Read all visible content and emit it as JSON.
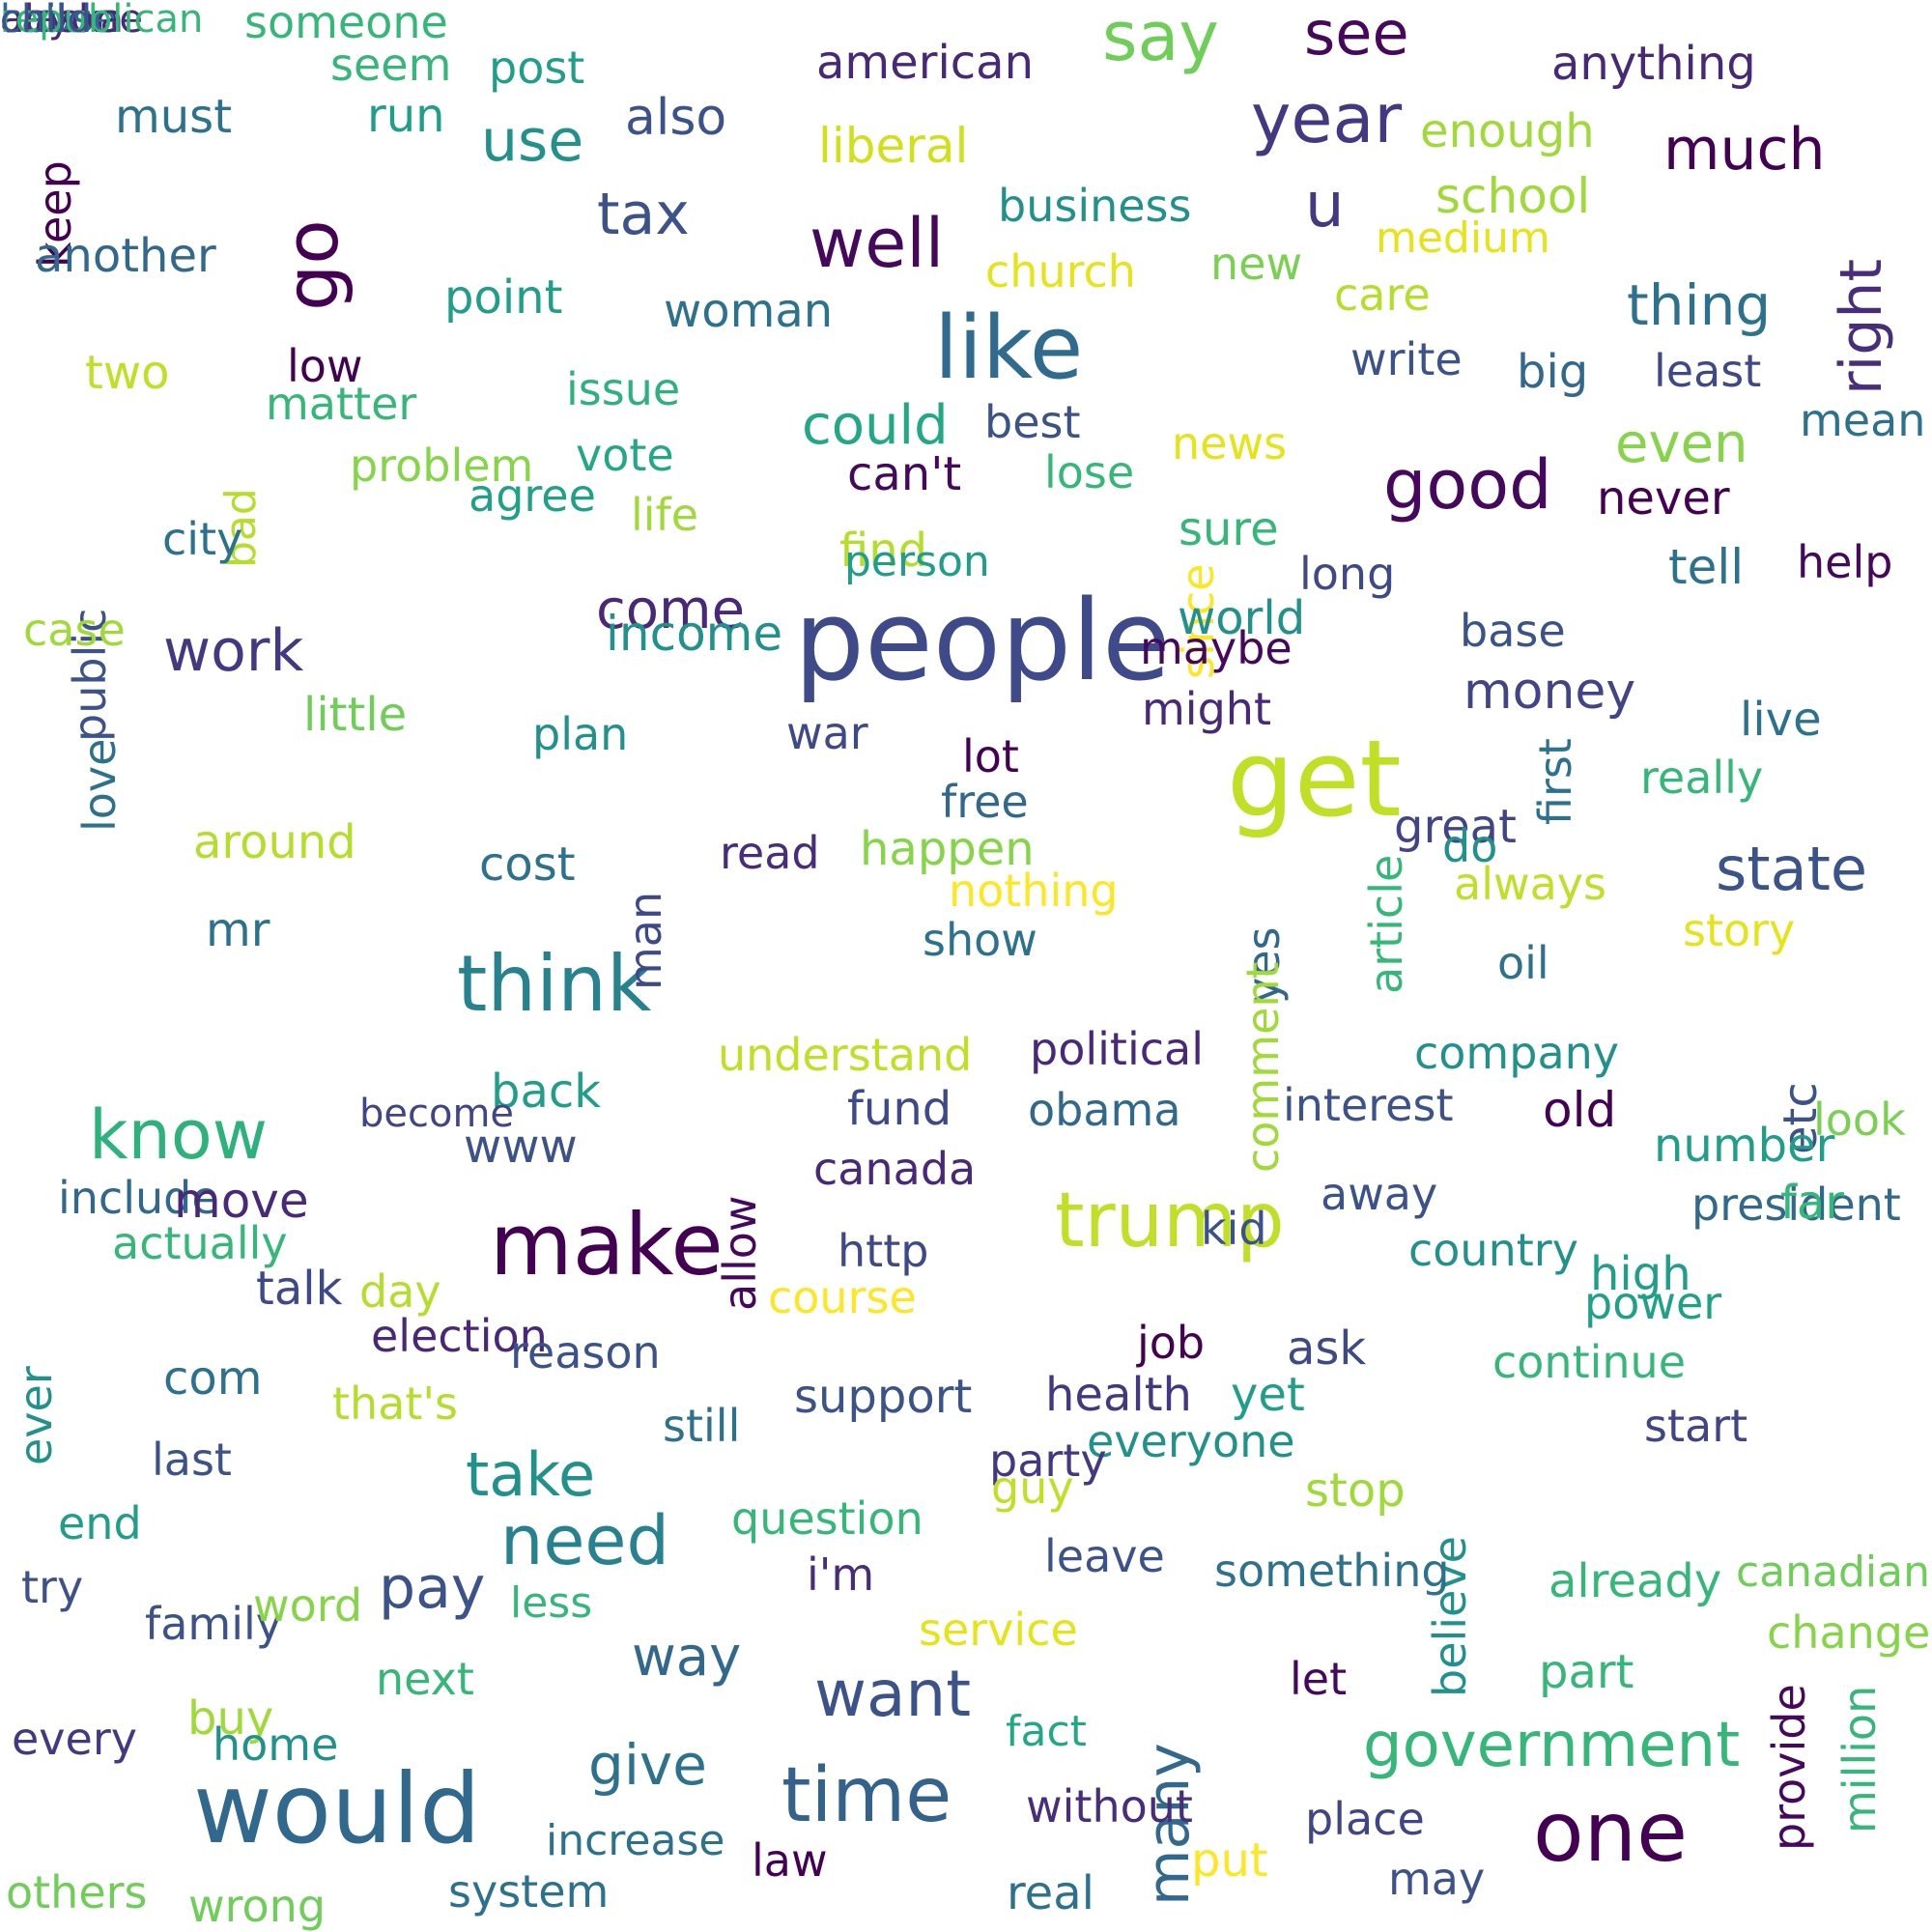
{
  "words": [
    {
      "text": "people",
      "color": "#3f4a8a"
    },
    {
      "text": "would",
      "color": "#31688e"
    },
    {
      "text": "get",
      "color": "#c0df25"
    },
    {
      "text": "like",
      "color": "#2f6b8e"
    },
    {
      "text": "make",
      "color": "#440154"
    },
    {
      "text": "one",
      "color": "#440154"
    },
    {
      "text": "think",
      "color": "#26828e"
    },
    {
      "text": "time",
      "color": "#33638d"
    },
    {
      "text": "trump",
      "color": "#c0df25"
    },
    {
      "text": "go",
      "color": "#440154"
    },
    {
      "text": "year",
      "color": "#453882"
    },
    {
      "text": "know",
      "color": "#2db27d"
    },
    {
      "text": "say",
      "color": "#6ece58"
    },
    {
      "text": "well",
      "color": "#46085c"
    },
    {
      "text": "good",
      "color": "#46085c"
    },
    {
      "text": "many",
      "color": "#31688e"
    },
    {
      "text": "need",
      "color": "#26828e"
    },
    {
      "text": "want",
      "color": "#3b528b"
    },
    {
      "text": "take",
      "color": "#21918c"
    },
    {
      "text": "see",
      "color": "#46085c"
    },
    {
      "text": "right",
      "color": "#472d7b"
    },
    {
      "text": "state",
      "color": "#3b528b"
    },
    {
      "text": "government",
      "color": "#35b779"
    },
    {
      "text": "pay",
      "color": "#3b528b"
    },
    {
      "text": "work",
      "color": "#453882"
    },
    {
      "text": "use",
      "color": "#21918c"
    },
    {
      "text": "tax",
      "color": "#3b528b"
    },
    {
      "text": "much",
      "color": "#440154"
    },
    {
      "text": "u",
      "color": "#443983"
    },
    {
      "text": "way",
      "color": "#31688e"
    },
    {
      "text": "come",
      "color": "#482878"
    },
    {
      "text": "could",
      "color": "#22a884"
    },
    {
      "text": "even",
      "color": "#86d549"
    },
    {
      "text": "give",
      "color": "#2c728e"
    },
    {
      "text": "money",
      "color": "#414487"
    },
    {
      "text": "thing",
      "color": "#2c728e"
    },
    {
      "text": "also",
      "color": "#3b528b"
    },
    {
      "text": "american",
      "color": "#482878"
    },
    {
      "text": "anything",
      "color": "#482878"
    },
    {
      "text": "liberal",
      "color": "#d0e11c"
    },
    {
      "text": "enough",
      "color": "#a0da39"
    },
    {
      "text": "business",
      "color": "#21918c"
    },
    {
      "text": "school",
      "color": "#a0da39"
    },
    {
      "text": "medium",
      "color": "#e5e419"
    },
    {
      "text": "church",
      "color": "#e5e419"
    },
    {
      "text": "new",
      "color": "#7ad151"
    },
    {
      "text": "care",
      "color": "#b5de2b"
    },
    {
      "text": "someone",
      "color": "#35b779"
    },
    {
      "text": "seem",
      "color": "#35b779"
    },
    {
      "text": "post",
      "color": "#1f9e89"
    },
    {
      "text": "must",
      "color": "#2c728e"
    },
    {
      "text": "run",
      "color": "#1f9e89"
    },
    {
      "text": "keep",
      "color": "#440154"
    },
    {
      "text": "another",
      "color": "#31688e"
    },
    {
      "text": "point",
      "color": "#1f9e89"
    },
    {
      "text": "woman",
      "color": "#2c728e"
    },
    {
      "text": "write",
      "color": "#3b528b"
    },
    {
      "text": "big",
      "color": "#31688e"
    },
    {
      "text": "least",
      "color": "#3e4989"
    },
    {
      "text": "mean",
      "color": "#2c728e"
    },
    {
      "text": "two",
      "color": "#c0df25"
    },
    {
      "text": "low",
      "color": "#440154"
    },
    {
      "text": "matter",
      "color": "#35b779"
    },
    {
      "text": "issue",
      "color": "#2db27d"
    },
    {
      "text": "bad",
      "color": "#b5de2b"
    },
    {
      "text": "best",
      "color": "#3b528b"
    },
    {
      "text": "public",
      "color": "#3b528b"
    },
    {
      "text": "problem",
      "color": "#86d549"
    },
    {
      "text": "vote",
      "color": "#22a884"
    },
    {
      "text": "agree",
      "color": "#1fa187"
    },
    {
      "text": "life",
      "color": "#a0da39"
    },
    {
      "text": "can't",
      "color": "#46085c"
    },
    {
      "text": "lose",
      "color": "#35b779"
    },
    {
      "text": "news",
      "color": "#e5e419"
    },
    {
      "text": "long",
      "color": "#3e4989"
    },
    {
      "text": "never",
      "color": "#440154"
    },
    {
      "text": "since",
      "color": "#fde725"
    },
    {
      "text": "sure",
      "color": "#35b779"
    },
    {
      "text": "city",
      "color": "#2c728e"
    },
    {
      "text": "find",
      "color": "#b5de2b"
    },
    {
      "text": "help",
      "color": "#46085c"
    },
    {
      "text": "tell",
      "color": "#2c728e"
    },
    {
      "text": "world",
      "color": "#21918c"
    },
    {
      "text": "person",
      "color": "#1f9e89"
    },
    {
      "text": "case",
      "color": "#a0da39"
    },
    {
      "text": "base",
      "color": "#3b528b"
    },
    {
      "text": "income",
      "color": "#21918c"
    },
    {
      "text": "maybe",
      "color": "#46085c"
    },
    {
      "text": "little",
      "color": "#6ece58"
    },
    {
      "text": "live",
      "color": "#2c728e"
    },
    {
      "text": "plan",
      "color": "#21918c"
    },
    {
      "text": "might",
      "color": "#482878"
    },
    {
      "text": "war",
      "color": "#3e4989"
    },
    {
      "text": "lot",
      "color": "#440154"
    },
    {
      "text": "love",
      "color": "#2c728e"
    },
    {
      "text": "really",
      "color": "#35b779"
    },
    {
      "text": "first",
      "color": "#2c728e"
    },
    {
      "text": "free",
      "color": "#31688e"
    },
    {
      "text": "around",
      "color": "#b5de2b"
    },
    {
      "text": "happen",
      "color": "#86d549"
    },
    {
      "text": "great",
      "color": "#414487"
    },
    {
      "text": "do",
      "color": "#21918c"
    },
    {
      "text": "read",
      "color": "#472d7b"
    },
    {
      "text": "cost",
      "color": "#2c728e"
    },
    {
      "text": "nothing",
      "color": "#fde725"
    },
    {
      "text": "article",
      "color": "#35b779"
    },
    {
      "text": "man",
      "color": "#3e4989"
    },
    {
      "text": "mr",
      "color": "#2c728e"
    },
    {
      "text": "story",
      "color": "#e5e419"
    },
    {
      "text": "show",
      "color": "#2c728e"
    },
    {
      "text": "always",
      "color": "#c0df25"
    },
    {
      "text": "yes",
      "color": "#31688e"
    },
    {
      "text": "political",
      "color": "#482878"
    },
    {
      "text": "oil",
      "color": "#2c728e"
    },
    {
      "text": "understand",
      "color": "#c0df25"
    },
    {
      "text": "company",
      "color": "#21918c"
    },
    {
      "text": "comment",
      "color": "#a0da39"
    },
    {
      "text": "back",
      "color": "#1f9e89"
    },
    {
      "text": "become",
      "color": "#414487"
    },
    {
      "text": "fund",
      "color": "#3e4989"
    },
    {
      "text": "obama",
      "color": "#31688e"
    },
    {
      "text": "interest",
      "color": "#3b528b"
    },
    {
      "text": "old",
      "color": "#440154"
    },
    {
      "text": "etc",
      "color": "#3b528b"
    },
    {
      "text": "look",
      "color": "#7ad151"
    },
    {
      "text": "www",
      "color": "#3b528b"
    },
    {
      "text": "number",
      "color": "#1f9e89"
    },
    {
      "text": "include",
      "color": "#31688e"
    },
    {
      "text": "move",
      "color": "#482878"
    },
    {
      "text": "canada",
      "color": "#482878"
    },
    {
      "text": "away",
      "color": "#3b528b"
    },
    {
      "text": "president",
      "color": "#31688e"
    },
    {
      "text": "kid",
      "color": "#3b528b"
    },
    {
      "text": "far",
      "color": "#35b779"
    },
    {
      "text": "actually",
      "color": "#35b779"
    },
    {
      "text": "http",
      "color": "#3e4989"
    },
    {
      "text": "allow",
      "color": "#46085c"
    },
    {
      "text": "country",
      "color": "#21918c"
    },
    {
      "text": "high",
      "color": "#1f9e89"
    },
    {
      "text": "talk",
      "color": "#3e4989"
    },
    {
      "text": "day",
      "color": "#b5de2b"
    },
    {
      "text": "course",
      "color": "#fde725"
    },
    {
      "text": "power",
      "color": "#1fa187"
    },
    {
      "text": "election",
      "color": "#482878"
    },
    {
      "text": "job",
      "color": "#440154"
    },
    {
      "text": "ask",
      "color": "#3e4989"
    },
    {
      "text": "reason",
      "color": "#3b528b"
    },
    {
      "text": "continue",
      "color": "#35b779"
    },
    {
      "text": "ever",
      "color": "#21918c"
    },
    {
      "text": "com",
      "color": "#2c728e"
    },
    {
      "text": "that's",
      "color": "#b5de2b"
    },
    {
      "text": "health",
      "color": "#453882"
    },
    {
      "text": "support",
      "color": "#3b528b"
    },
    {
      "text": "yet",
      "color": "#1f9e89"
    },
    {
      "text": "still",
      "color": "#2c728e"
    },
    {
      "text": "everyone",
      "color": "#21918c"
    },
    {
      "text": "start",
      "color": "#414487"
    },
    {
      "text": "last",
      "color": "#3b528b"
    },
    {
      "text": "party",
      "color": "#453882"
    },
    {
      "text": "stop",
      "color": "#a0da39"
    },
    {
      "text": "guy",
      "color": "#c0df25"
    },
    {
      "text": "end",
      "color": "#1f9e89"
    },
    {
      "text": "question",
      "color": "#35b779"
    },
    {
      "text": "leave",
      "color": "#3b528b"
    },
    {
      "text": "believe",
      "color": "#21918c"
    },
    {
      "text": "try",
      "color": "#3b528b"
    },
    {
      "text": "i'm",
      "color": "#472d7b"
    },
    {
      "text": "something",
      "color": "#2c728e"
    },
    {
      "text": "already",
      "color": "#35b779"
    },
    {
      "text": "canadian",
      "color": "#6ece58"
    },
    {
      "text": "family",
      "color": "#3b528b"
    },
    {
      "text": "word",
      "color": "#86d549"
    },
    {
      "text": "less",
      "color": "#35b779"
    },
    {
      "text": "service",
      "color": "#e5e419"
    },
    {
      "text": "change",
      "color": "#86d549"
    },
    {
      "text": "next",
      "color": "#35b779"
    },
    {
      "text": "let",
      "color": "#46085c"
    },
    {
      "text": "part",
      "color": "#35b779"
    },
    {
      "text": "provide",
      "color": "#46085c"
    },
    {
      "text": "million",
      "color": "#35b779"
    },
    {
      "text": "buy",
      "color": "#a0da39"
    },
    {
      "text": "every",
      "color": "#453882"
    },
    {
      "text": "home",
      "color": "#21918c"
    },
    {
      "text": "fact",
      "color": "#22a884"
    },
    {
      "text": "without",
      "color": "#472d7b"
    },
    {
      "text": "increase",
      "color": "#2c728e"
    },
    {
      "text": "law",
      "color": "#440154"
    },
    {
      "text": "place",
      "color": "#414487"
    },
    {
      "text": "put",
      "color": "#fde725"
    },
    {
      "text": "may",
      "color": "#3b528b"
    },
    {
      "text": "others",
      "color": "#6ece58"
    },
    {
      "text": "wrong",
      "color": "#6ece58"
    },
    {
      "text": "system",
      "color": "#2c728e"
    },
    {
      "text": "real",
      "color": "#2c728e"
    },
    {
      "text": "anyone",
      "color": "#482878"
    },
    {
      "text": "call",
      "color": "#31688e"
    },
    {
      "text": "house",
      "color": "#31688e"
    },
    {
      "text": "alaska",
      "color": "#482878"
    },
    {
      "text": "republican",
      "color": "#35b779"
    },
    {
      "text": "child",
      "color": "#3b528b"
    }
  ]
}
